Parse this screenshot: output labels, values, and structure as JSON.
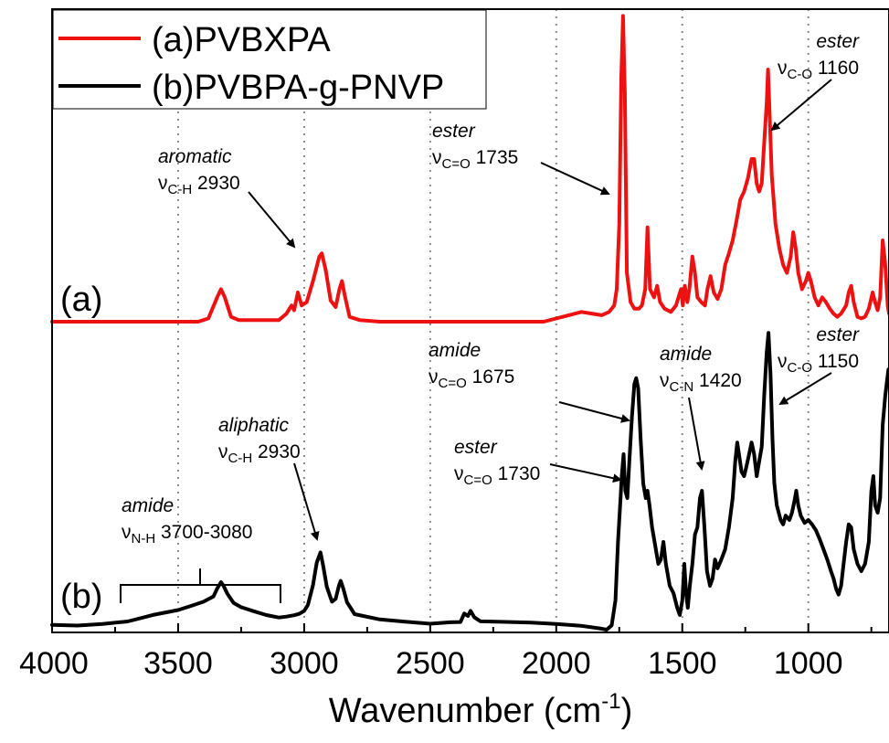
{
  "chart_data": {
    "type": "line",
    "title": "",
    "xlabel_main": "Wavenumber (cm",
    "xlabel_sup": "-1",
    "xlabel_close": ")",
    "ylabel": "",
    "xlim": [
      4000,
      680
    ],
    "x_reversed": true,
    "y_ticks_visible": false,
    "grid": "vertical-dotted",
    "x_ticks": [
      4000,
      3500,
      3000,
      2500,
      2000,
      1500,
      1000
    ],
    "x_tick_labels": [
      "4000",
      "3500",
      "3000",
      "2500",
      "2000",
      "1500",
      "1000"
    ],
    "grid_x": [
      3500,
      3000,
      2500,
      2000,
      1500,
      1000
    ],
    "legend_position": "top-left",
    "colors": {
      "a": "#ee1111",
      "b": "#000000",
      "grid": "#888888"
    },
    "series": [
      {
        "key": "a",
        "name": "(a)PVBXPA",
        "label": "(a)",
        "color": "#ee1111",
        "points": [
          [
            4000,
            0.0
          ],
          [
            3420,
            0.0
          ],
          [
            3380,
            0.02
          ],
          [
            3345,
            0.15
          ],
          [
            3330,
            0.2
          ],
          [
            3315,
            0.15
          ],
          [
            3290,
            0.03
          ],
          [
            3260,
            0.01
          ],
          [
            3100,
            0.01
          ],
          [
            3070,
            0.05
          ],
          [
            3050,
            0.1
          ],
          [
            3040,
            0.07
          ],
          [
            3025,
            0.18
          ],
          [
            3010,
            0.1
          ],
          [
            2990,
            0.12
          ],
          [
            2965,
            0.25
          ],
          [
            2940,
            0.4
          ],
          [
            2930,
            0.42
          ],
          [
            2915,
            0.32
          ],
          [
            2895,
            0.13
          ],
          [
            2875,
            0.09
          ],
          [
            2860,
            0.2
          ],
          [
            2850,
            0.25
          ],
          [
            2840,
            0.17
          ],
          [
            2820,
            0.03
          ],
          [
            2780,
            0.01
          ],
          [
            2700,
            0.0
          ],
          [
            2050,
            0.0
          ],
          [
            2000,
            0.02
          ],
          [
            1950,
            0.04
          ],
          [
            1900,
            0.06
          ],
          [
            1860,
            0.05
          ],
          [
            1820,
            0.04
          ],
          [
            1790,
            0.06
          ],
          [
            1770,
            0.1
          ],
          [
            1760,
            0.2
          ],
          [
            1750,
            0.6
          ],
          [
            1742,
            1.5
          ],
          [
            1735,
            1.88
          ],
          [
            1728,
            1.4
          ],
          [
            1720,
            0.3
          ],
          [
            1705,
            0.12
          ],
          [
            1690,
            0.08
          ],
          [
            1672,
            0.08
          ],
          [
            1660,
            0.1
          ],
          [
            1647,
            0.2
          ],
          [
            1638,
            0.58
          ],
          [
            1628,
            0.2
          ],
          [
            1612,
            0.15
          ],
          [
            1600,
            0.22
          ],
          [
            1588,
            0.12
          ],
          [
            1570,
            0.08
          ],
          [
            1545,
            0.06
          ],
          [
            1525,
            0.1
          ],
          [
            1515,
            0.15
          ],
          [
            1505,
            0.2
          ],
          [
            1498,
            0.1
          ],
          [
            1490,
            0.22
          ],
          [
            1480,
            0.12
          ],
          [
            1472,
            0.2
          ],
          [
            1460,
            0.4
          ],
          [
            1450,
            0.3
          ],
          [
            1440,
            0.15
          ],
          [
            1425,
            0.12
          ],
          [
            1410,
            0.1
          ],
          [
            1400,
            0.2
          ],
          [
            1388,
            0.28
          ],
          [
            1375,
            0.18
          ],
          [
            1360,
            0.14
          ],
          [
            1345,
            0.2
          ],
          [
            1330,
            0.35
          ],
          [
            1315,
            0.42
          ],
          [
            1300,
            0.5
          ],
          [
            1285,
            0.62
          ],
          [
            1270,
            0.75
          ],
          [
            1255,
            0.8
          ],
          [
            1240,
            0.88
          ],
          [
            1225,
            1.0
          ],
          [
            1215,
            1.0
          ],
          [
            1205,
            0.85
          ],
          [
            1195,
            0.8
          ],
          [
            1185,
            0.85
          ],
          [
            1175,
            1.1
          ],
          [
            1165,
            1.35
          ],
          [
            1160,
            1.55
          ],
          [
            1155,
            1.35
          ],
          [
            1145,
            0.9
          ],
          [
            1130,
            0.6
          ],
          [
            1115,
            0.45
          ],
          [
            1100,
            0.35
          ],
          [
            1085,
            0.3
          ],
          [
            1070,
            0.4
          ],
          [
            1060,
            0.55
          ],
          [
            1050,
            0.45
          ],
          [
            1040,
            0.3
          ],
          [
            1025,
            0.2
          ],
          [
            1010,
            0.25
          ],
          [
            1000,
            0.3
          ],
          [
            990,
            0.25
          ],
          [
            975,
            0.15
          ],
          [
            960,
            0.1
          ],
          [
            945,
            0.15
          ],
          [
            930,
            0.12
          ],
          [
            915,
            0.08
          ],
          [
            900,
            0.05
          ],
          [
            885,
            0.03
          ],
          [
            870,
            0.05
          ],
          [
            850,
            0.1
          ],
          [
            840,
            0.18
          ],
          [
            830,
            0.22
          ],
          [
            820,
            0.12
          ],
          [
            805,
            0.03
          ],
          [
            790,
            0.02
          ],
          [
            775,
            0.03
          ],
          [
            760,
            0.08
          ],
          [
            745,
            0.18
          ],
          [
            735,
            0.12
          ],
          [
            725,
            0.07
          ],
          [
            715,
            0.15
          ],
          [
            705,
            0.5
          ],
          [
            695,
            0.35
          ],
          [
            685,
            0.1
          ],
          [
            680,
            0.05
          ]
        ]
      },
      {
        "key": "b",
        "name": "(b)PVBPA-g-PNVP",
        "label": "(b)",
        "color": "#000000",
        "points": [
          [
            4000,
            0.03
          ],
          [
            3900,
            0.02
          ],
          [
            3800,
            0.03
          ],
          [
            3700,
            0.05
          ],
          [
            3600,
            0.1
          ],
          [
            3500,
            0.14
          ],
          [
            3450,
            0.17
          ],
          [
            3400,
            0.2
          ],
          [
            3360,
            0.22
          ],
          [
            3345,
            0.28
          ],
          [
            3330,
            0.33
          ],
          [
            3320,
            0.3
          ],
          [
            3305,
            0.24
          ],
          [
            3280,
            0.19
          ],
          [
            3250,
            0.16
          ],
          [
            3200,
            0.13
          ],
          [
            3150,
            0.1
          ],
          [
            3100,
            0.08
          ],
          [
            3070,
            0.08
          ],
          [
            3040,
            0.1
          ],
          [
            3020,
            0.1
          ],
          [
            3000,
            0.12
          ],
          [
            2985,
            0.16
          ],
          [
            2965,
            0.3
          ],
          [
            2950,
            0.45
          ],
          [
            2935,
            0.52
          ],
          [
            2925,
            0.45
          ],
          [
            2910,
            0.3
          ],
          [
            2890,
            0.2
          ],
          [
            2875,
            0.22
          ],
          [
            2862,
            0.3
          ],
          [
            2855,
            0.34
          ],
          [
            2845,
            0.28
          ],
          [
            2830,
            0.18
          ],
          [
            2800,
            0.1
          ],
          [
            2700,
            0.07
          ],
          [
            2600,
            0.06
          ],
          [
            2500,
            0.05
          ],
          [
            2420,
            0.05
          ],
          [
            2380,
            0.06
          ],
          [
            2365,
            0.12
          ],
          [
            2350,
            0.1
          ],
          [
            2340,
            0.12
          ],
          [
            2325,
            0.08
          ],
          [
            2300,
            0.06
          ],
          [
            2200,
            0.05
          ],
          [
            2100,
            0.04
          ],
          [
            2000,
            0.03
          ],
          [
            1900,
            0.02
          ],
          [
            1830,
            0.0
          ],
          [
            1800,
            0.0
          ],
          [
            1780,
            0.03
          ],
          [
            1765,
            0.2
          ],
          [
            1755,
            0.6
          ],
          [
            1745,
            0.9
          ],
          [
            1740,
            1.05
          ],
          [
            1733,
            1.2
          ],
          [
            1726,
            0.95
          ],
          [
            1718,
            0.9
          ],
          [
            1710,
            1.15
          ],
          [
            1700,
            1.45
          ],
          [
            1690,
            1.68
          ],
          [
            1683,
            1.72
          ],
          [
            1675,
            1.65
          ],
          [
            1665,
            1.3
          ],
          [
            1655,
            1.0
          ],
          [
            1645,
            0.9
          ],
          [
            1638,
            0.95
          ],
          [
            1630,
            0.85
          ],
          [
            1620,
            0.7
          ],
          [
            1605,
            0.55
          ],
          [
            1595,
            0.45
          ],
          [
            1585,
            0.48
          ],
          [
            1575,
            0.6
          ],
          [
            1565,
            0.45
          ],
          [
            1550,
            0.3
          ],
          [
            1535,
            0.25
          ],
          [
            1520,
            0.15
          ],
          [
            1510,
            0.1
          ],
          [
            1500,
            0.2
          ],
          [
            1492,
            0.45
          ],
          [
            1485,
            0.25
          ],
          [
            1478,
            0.15
          ],
          [
            1470,
            0.3
          ],
          [
            1460,
            0.45
          ],
          [
            1450,
            0.65
          ],
          [
            1440,
            0.7
          ],
          [
            1430,
            0.9
          ],
          [
            1422,
            0.95
          ],
          [
            1412,
            0.7
          ],
          [
            1402,
            0.4
          ],
          [
            1390,
            0.3
          ],
          [
            1380,
            0.35
          ],
          [
            1370,
            0.48
          ],
          [
            1360,
            0.42
          ],
          [
            1345,
            0.48
          ],
          [
            1330,
            0.55
          ],
          [
            1315,
            0.7
          ],
          [
            1300,
            0.9
          ],
          [
            1290,
            1.15
          ],
          [
            1282,
            1.28
          ],
          [
            1275,
            1.2
          ],
          [
            1265,
            1.08
          ],
          [
            1255,
            1.05
          ],
          [
            1245,
            1.12
          ],
          [
            1235,
            1.2
          ],
          [
            1225,
            1.28
          ],
          [
            1215,
            1.2
          ],
          [
            1205,
            1.05
          ],
          [
            1195,
            1.15
          ],
          [
            1185,
            1.25
          ],
          [
            1175,
            1.6
          ],
          [
            1165,
            1.9
          ],
          [
            1158,
            2.03
          ],
          [
            1150,
            1.75
          ],
          [
            1142,
            1.3
          ],
          [
            1135,
            1.0
          ],
          [
            1125,
            0.85
          ],
          [
            1110,
            0.75
          ],
          [
            1100,
            0.72
          ],
          [
            1090,
            0.78
          ],
          [
            1075,
            0.75
          ],
          [
            1065,
            0.8
          ],
          [
            1055,
            0.88
          ],
          [
            1048,
            0.95
          ],
          [
            1040,
            0.85
          ],
          [
            1030,
            0.78
          ],
          [
            1015,
            0.73
          ],
          [
            1000,
            0.75
          ],
          [
            985,
            0.72
          ],
          [
            970,
            0.68
          ],
          [
            955,
            0.62
          ],
          [
            940,
            0.55
          ],
          [
            925,
            0.48
          ],
          [
            910,
            0.4
          ],
          [
            900,
            0.35
          ],
          [
            890,
            0.28
          ],
          [
            880,
            0.24
          ],
          [
            870,
            0.3
          ],
          [
            860,
            0.45
          ],
          [
            850,
            0.6
          ],
          [
            840,
            0.72
          ],
          [
            830,
            0.7
          ],
          [
            820,
            0.55
          ],
          [
            805,
            0.45
          ],
          [
            790,
            0.4
          ],
          [
            775,
            0.45
          ],
          [
            760,
            0.6
          ],
          [
            750,
            0.95
          ],
          [
            742,
            1.05
          ],
          [
            735,
            0.85
          ],
          [
            725,
            0.8
          ],
          [
            715,
            0.9
          ],
          [
            705,
            1.4
          ],
          [
            695,
            1.6
          ],
          [
            688,
            1.7
          ],
          [
            682,
            1.78
          ],
          [
            680,
            1.76
          ]
        ]
      }
    ],
    "annotations": [
      {
        "key": "a_arom",
        "line1": "aromatic",
        "nu": "ν",
        "sub": "C-H",
        "value": " 2930"
      },
      {
        "key": "a_ester1735",
        "line1": "ester",
        "nu": "ν",
        "sub": "C=O",
        "value": " 1735"
      },
      {
        "key": "a_ester1160",
        "line1": "ester",
        "nu": "ν",
        "sub": "C-O",
        "value": " 1160"
      },
      {
        "key": "b_aliph",
        "line1": "aliphatic",
        "nu": "ν",
        "sub": "C-H",
        "value": " 2930"
      },
      {
        "key": "b_amide_nh",
        "line1": "amide",
        "nu": "ν",
        "sub": "N-H",
        "value": " 3700-3080"
      },
      {
        "key": "b_amide1675",
        "line1": "amide",
        "nu": "ν",
        "sub": "C=O",
        "value": " 1675"
      },
      {
        "key": "b_ester1730",
        "line1": "ester",
        "nu": "ν",
        "sub": "C=O",
        "value": " 1730"
      },
      {
        "key": "b_amide1420",
        "line1": "amide",
        "nu": "ν",
        "sub": "C-N",
        "value": " 1420"
      },
      {
        "key": "b_ester1150",
        "line1": "ester",
        "nu": "ν",
        "sub": "C-O",
        "value": " 1150"
      }
    ]
  }
}
